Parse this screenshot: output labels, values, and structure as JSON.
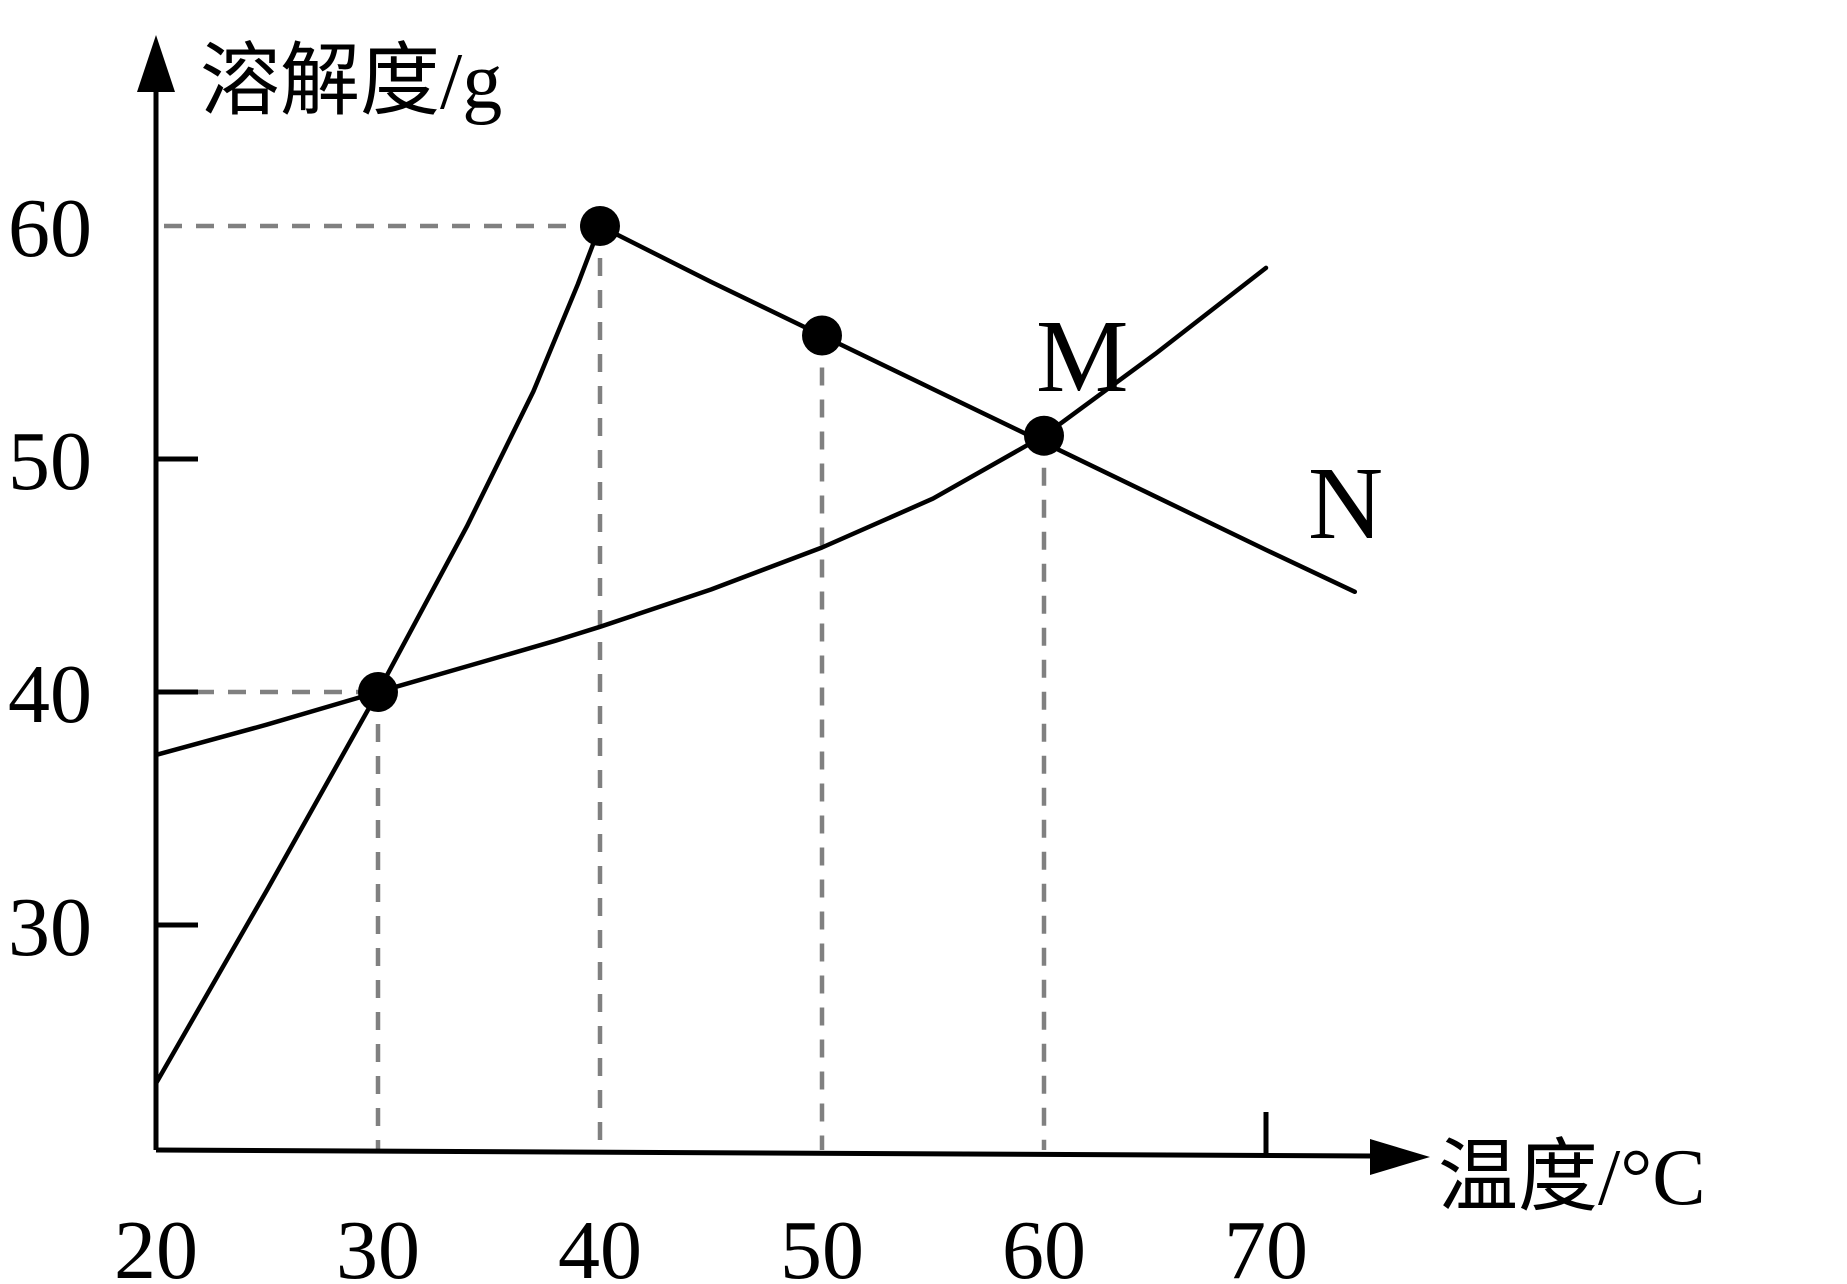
{
  "chart_data": {
    "type": "line",
    "ylabel": "溶解度/g",
    "xlabel": "温度/°C",
    "x_ticks": [
      "20",
      "30",
      "40",
      "50",
      "60",
      "70"
    ],
    "y_ticks": [
      "30",
      "40",
      "50",
      "60"
    ],
    "xlim": [
      20,
      70
    ],
    "ylim": [
      22,
      70
    ],
    "grid": false,
    "series": [
      {
        "name": "M",
        "x": [
          20,
          25,
          30,
          34,
          38,
          40,
          45,
          50,
          55,
          60,
          65,
          70
        ],
        "y": [
          37.3,
          38.6,
          40,
          41.1,
          42.2,
          42.8,
          44.4,
          46.2,
          48.3,
          51,
          54.5,
          58.2
        ]
      },
      {
        "name": "N",
        "x": [
          20,
          25,
          30,
          34,
          37,
          39,
          40,
          45,
          50,
          55,
          60,
          65,
          70,
          74
        ],
        "y": [
          23.2,
          31.5,
          40,
          47.1,
          52.9,
          57.5,
          60,
          57.6,
          55.3,
          53,
          50.7,
          48.4,
          46.1,
          44.3
        ]
      }
    ],
    "marked_points": [
      {
        "x": 30,
        "y": 40
      },
      {
        "x": 40,
        "y": 60
      },
      {
        "x": 50,
        "y": 55.3
      },
      {
        "x": 60,
        "y": 51
      }
    ]
  }
}
